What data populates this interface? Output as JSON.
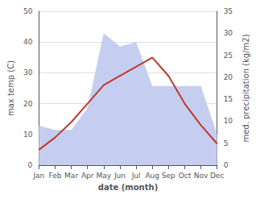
{
  "chart_data": {
    "type": "line",
    "categories": [
      "Jan",
      "Feb",
      "Mar",
      "Apr",
      "May",
      "Jun",
      "Jul",
      "Aug",
      "Sep",
      "Oct",
      "Nov",
      "Dec"
    ],
    "series": [
      {
        "type": "area",
        "color": "#c5cef0",
        "axis": "y2",
        "values": [
          9,
          8,
          8,
          13,
          30,
          27,
          28,
          18,
          18,
          18,
          18,
          7
        ]
      },
      {
        "type": "line",
        "color": "#c0392b",
        "values": [
          5,
          9,
          14,
          20,
          26,
          29,
          32,
          35,
          29,
          20,
          13,
          7
        ]
      }
    ],
    "xlabel": "date (month)",
    "ylabel": "max temp (C)",
    "y2label": "med. precipitation (kg/m2)",
    "ylim": [
      0,
      50
    ],
    "yticks": [
      0,
      10,
      20,
      30,
      40,
      50
    ],
    "y2lim": [
      0,
      35
    ],
    "y2ticks": [
      0,
      5,
      10,
      15,
      20,
      25,
      30,
      35
    ],
    "grid": true
  }
}
